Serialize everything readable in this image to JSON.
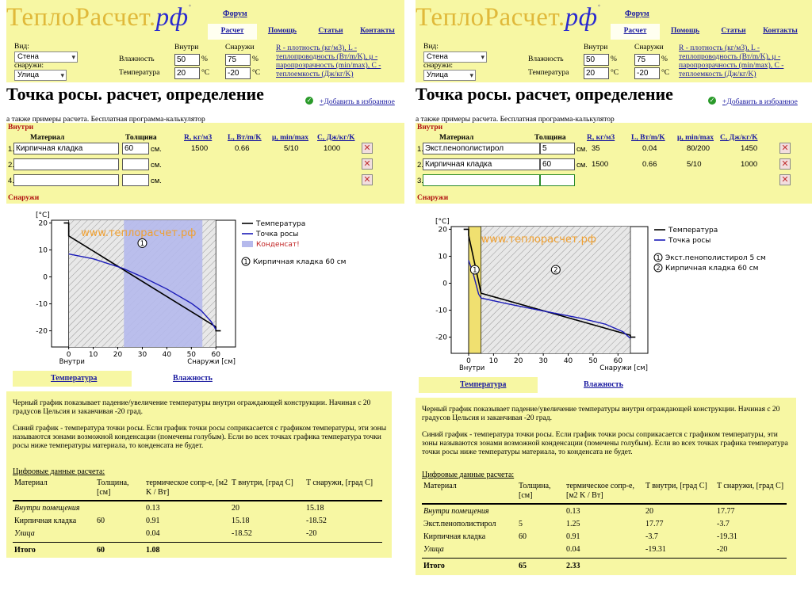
{
  "site": {
    "logo_main": "ТеплоРасчет.",
    "logo_rf": "рф",
    "logo_mark": "*",
    "forum": "Форум"
  },
  "nav": [
    "Расчет",
    "Помощь",
    "Статьи",
    "Контакты"
  ],
  "form": {
    "vid_label": "Вид:",
    "vid_value": "Стена",
    "outside_label": "снаружи:",
    "outside_value": "Улица",
    "inside_col": "Внутри",
    "outside_col": "Снаружи",
    "humidity_label": "Влажность",
    "temperature_label": "Температура",
    "hum_in": "50",
    "hum_out": "75",
    "hum_unit": "%",
    "temp_in": "20",
    "temp_out": "-20",
    "temp_unit": "°C",
    "legend": [
      "R - плотность (кг/м3), L -",
      "теплопроводность (Вт/m/K), μ -",
      "паропрозрачность (min/max), C -",
      "теплоемкость (Дж/кг/K)"
    ]
  },
  "title": "Точка росы. расчет, определение",
  "favorite": "+Добавить в избранное",
  "subtitle": "а также примеры расчета. Бесплатная программа-калькулятор",
  "layers_table": {
    "inside": "Внутри",
    "outside": "Снаружи",
    "headers": [
      "Материал",
      "Толщина",
      "R, кг/м3",
      "L, Вт/m/K",
      "μ, min/max",
      "C, Дж/кг/K"
    ],
    "cm": "см."
  },
  "left": {
    "rows": [
      {
        "num": "1.",
        "material": "Кирпичная кладка",
        "thickness": "60",
        "R": "1500",
        "L": "0.66",
        "mu": "5/10",
        "C": "1000"
      },
      {
        "num": "2.",
        "material": "",
        "thickness": "",
        "R": "",
        "L": "",
        "mu": "",
        "C": ""
      },
      {
        "num": "4.",
        "material": "",
        "thickness": "",
        "R": "",
        "L": "",
        "mu": "",
        "C": ""
      }
    ],
    "chart_data": {
      "type": "line",
      "watermark": "www.теплорасчет.рф",
      "ylabel": "[°C]",
      "xlabel_left": "Внутри",
      "xlabel_right": "Снаружи [см]",
      "xlim": [
        -7,
        68
      ],
      "ylim": [
        -26,
        21
      ],
      "xticks": [
        0,
        10,
        20,
        30,
        40,
        50,
        60
      ],
      "yticks": [
        20,
        10,
        0,
        -10,
        -20
      ],
      "condensation_zone": [
        22.5,
        54.5
      ],
      "condensation_label": "Конденсат!",
      "layer_labels": [
        {
          "num": "1",
          "x": 30,
          "y": 12.5
        }
      ],
      "layer_legend": [
        {
          "num": "1",
          "text": "Кирпичная кладка 60 см"
        }
      ],
      "series": [
        {
          "name": "Температура",
          "color": "#000000",
          "x": [
            -2,
            0,
            0,
            60,
            60,
            62
          ],
          "y": [
            20,
            20,
            15.18,
            -18.52,
            -20,
            -20
          ]
        },
        {
          "name": "Точка росы",
          "color": "#1a1ab8",
          "x": [
            0,
            10,
            22,
            30,
            40,
            50,
            54,
            58,
            60
          ],
          "y": [
            8.5,
            6.7,
            3.2,
            0,
            -4.5,
            -9.8,
            -12.5,
            -16.5,
            -19.5
          ]
        }
      ]
    },
    "results": {
      "title": "Цифровые данные расчета:",
      "headers": [
        "Материал",
        "Толщина, [см]",
        "термическое сопр-е, [м2 K / Вт]",
        "T внутри, [град C]",
        "T снаружи, [град C]"
      ],
      "rows": [
        {
          "material": "Внутри помещения",
          "thickness": "",
          "r": "0.13",
          "tin": "20",
          "tout": "15.18",
          "italic": true
        },
        {
          "material": "Кирпичная кладка",
          "thickness": "60",
          "r": "0.91",
          "tin": "15.18",
          "tout": "-18.52",
          "italic": false
        },
        {
          "material": "Улица",
          "thickness": "",
          "r": "0.04",
          "tin": "-18.52",
          "tout": "-20",
          "italic": true
        }
      ],
      "total": {
        "label": "Итого",
        "thickness": "60",
        "r": "1.08"
      }
    }
  },
  "right": {
    "rows": [
      {
        "num": "1.",
        "material": "Экст.пенополистирол",
        "thickness": "5",
        "R": "35",
        "L": "0.04",
        "mu": "80/200",
        "C": "1450"
      },
      {
        "num": "2.",
        "material": "Кирпичная кладка",
        "thickness": "60",
        "R": "1500",
        "L": "0.66",
        "mu": "5/10",
        "C": "1000"
      },
      {
        "num": "3.",
        "material": "",
        "thickness": "",
        "R": "",
        "L": "",
        "mu": "",
        "C": ""
      }
    ],
    "chart_data": {
      "type": "line",
      "watermark": "www.теплорасчет.рф",
      "ylabel": "[°C]",
      "xlabel_left": "Внутри",
      "xlabel_right": "Снаружи [см]",
      "xlim": [
        -7,
        72
      ],
      "ylim": [
        -26,
        21
      ],
      "xticks": [
        0,
        10,
        20,
        30,
        40,
        50,
        60
      ],
      "yticks": [
        20,
        10,
        0,
        -10,
        -20
      ],
      "insulation_zone": [
        0,
        5
      ],
      "layer_labels": [
        {
          "num": "1",
          "x": 2.5,
          "y": 5
        },
        {
          "num": "2",
          "x": 35,
          "y": 5
        }
      ],
      "layer_legend": [
        {
          "num": "1",
          "text": "Экст.пенополистирол 5 см"
        },
        {
          "num": "2",
          "text": "Кирпичная кладка 60 см"
        }
      ],
      "series": [
        {
          "name": "Температура",
          "color": "#000000",
          "x": [
            -2,
            0,
            0,
            5,
            65,
            65,
            67
          ],
          "y": [
            20,
            20,
            17.77,
            -3.7,
            -19.31,
            -20,
            -20
          ]
        },
        {
          "name": "Точка росы",
          "color": "#1a1ab8",
          "x": [
            0,
            2,
            4,
            5,
            15,
            30,
            45,
            55,
            62,
            65
          ],
          "y": [
            8.5,
            3,
            -4,
            -5.5,
            -7.5,
            -10.3,
            -13,
            -15.2,
            -18,
            -20.5
          ]
        }
      ]
    },
    "results": {
      "title": "Цифровые данные расчета:",
      "headers": [
        "Материал",
        "Толщина, [см]",
        "термическое сопр-е, [м2 K / Вт]",
        "T внутри, [град C]",
        "T снаружи, [град C]"
      ],
      "rows": [
        {
          "material": "Внутри помещения",
          "thickness": "",
          "r": "0.13",
          "tin": "20",
          "tout": "17.77",
          "italic": true
        },
        {
          "material": "Экст.пенополистирол",
          "thickness": "5",
          "r": "1.25",
          "tin": "17.77",
          "tout": "-3.7",
          "italic": false
        },
        {
          "material": "Кирпичная кладка",
          "thickness": "60",
          "r": "0.91",
          "tin": "-3.7",
          "tout": "-19.31",
          "italic": false
        },
        {
          "material": "Улица",
          "thickness": "",
          "r": "0.04",
          "tin": "-19.31",
          "tout": "-20",
          "italic": true
        }
      ],
      "total": {
        "label": "Итого",
        "thickness": "65",
        "r": "2.33"
      }
    }
  },
  "tabs": [
    "Температура",
    "Влажность"
  ],
  "description": [
    "Черный график показывает падение/увеличение температуры внутри ограждающей конструкции. Начиная с 20 градусов Цельсия и заканчивая -20 град.",
    "Синий график - температура точки росы. Если график точки росы соприкасается с графиком температуры, эти зоны называются зонами возможной конденсации (помечены голубым). Если во всех точках графика температура точки росы ниже температуры материала, то конденсата не будет."
  ]
}
